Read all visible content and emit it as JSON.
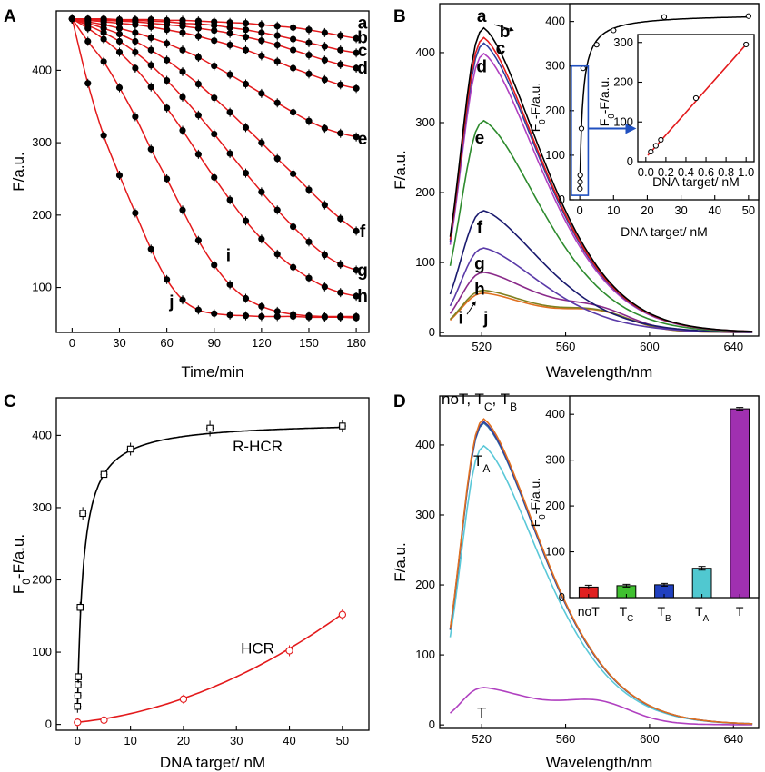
{
  "panels": [
    {
      "id": "A",
      "letter": "A",
      "chart_data": {
        "type": "scatter",
        "xlabel": "Time/min",
        "ylabel": "F/a.u.",
        "xlim": [
          -10,
          188
        ],
        "ylim": [
          38,
          482
        ],
        "xticks": [
          0,
          30,
          60,
          90,
          120,
          150,
          180
        ],
        "yticks": [
          100,
          200,
          300,
          400
        ],
        "line_color": "#e31a1c",
        "series": [
          {
            "name": "a",
            "x": [
              0,
              10,
              20,
              30,
              40,
              50,
              60,
              70,
              80,
              90,
              100,
              110,
              120,
              130,
              140,
              150,
              160,
              170,
              180
            ],
            "y": [
              471,
              471,
              471,
              470,
              470,
              470,
              469,
              469,
              468,
              467,
              466,
              465,
              463,
              461,
              459,
              456,
              452,
              448,
              444
            ]
          },
          {
            "name": "b",
            "x": [
              0,
              10,
              20,
              30,
              40,
              50,
              60,
              70,
              80,
              90,
              100,
              110,
              120,
              130,
              140,
              150,
              160,
              170,
              180
            ],
            "y": [
              471,
              470,
              470,
              469,
              469,
              468,
              467,
              465,
              464,
              462,
              459,
              456,
              452,
              448,
              443,
              438,
              433,
              428,
              424
            ]
          },
          {
            "name": "c",
            "x": [
              0,
              10,
              20,
              30,
              40,
              50,
              60,
              70,
              80,
              90,
              100,
              110,
              120,
              130,
              140,
              150,
              160,
              170,
              180
            ],
            "y": [
              471,
              470,
              469,
              468,
              467,
              465,
              463,
              461,
              458,
              455,
              451,
              446,
              441,
              435,
              428,
              421,
              414,
              408,
              403
            ]
          },
          {
            "name": "d",
            "x": [
              0,
              10,
              20,
              30,
              40,
              50,
              60,
              70,
              80,
              90,
              100,
              110,
              120,
              130,
              140,
              150,
              160,
              170,
              180
            ],
            "y": [
              471,
              469,
              467,
              465,
              463,
              460,
              456,
              452,
              447,
              441,
              435,
              428,
              420,
              412,
              403,
              395,
              387,
              380,
              375
            ]
          },
          {
            "name": "e",
            "x": [
              0,
              10,
              20,
              30,
              40,
              50,
              60,
              70,
              80,
              90,
              100,
              110,
              120,
              130,
              140,
              150,
              160,
              170,
              180
            ],
            "y": [
              471,
              467,
              463,
              458,
              452,
              445,
              437,
              428,
              418,
              406,
              394,
              381,
              368,
              355,
              342,
              330,
              320,
              313,
              308
            ]
          },
          {
            "name": "f",
            "x": [
              0,
              10,
              20,
              30,
              40,
              50,
              60,
              70,
              80,
              90,
              100,
              110,
              120,
              130,
              140,
              150,
              160,
              170,
              180
            ],
            "y": [
              471,
              465,
              458,
              450,
              440,
              428,
              414,
              398,
              381,
              362,
              342,
              321,
              300,
              278,
              257,
              235,
              214,
              195,
              178
            ]
          },
          {
            "name": "g",
            "x": [
              0,
              10,
              20,
              30,
              40,
              50,
              60,
              70,
              80,
              90,
              100,
              110,
              120,
              130,
              140,
              150,
              160,
              170,
              180
            ],
            "y": [
              471,
              462,
              452,
              440,
              425,
              407,
              386,
              363,
              338,
              312,
              285,
              258,
              232,
              207,
              184,
              163,
              145,
              132,
              124
            ]
          },
          {
            "name": "h",
            "x": [
              0,
              10,
              20,
              30,
              40,
              50,
              60,
              70,
              80,
              90,
              100,
              110,
              120,
              130,
              140,
              150,
              160,
              170,
              180
            ],
            "y": [
              471,
              458,
              443,
              425,
              403,
              377,
              348,
              317,
              284,
              252,
              221,
              192,
              167,
              146,
              128,
              113,
              101,
              93,
              88
            ]
          },
          {
            "name": "i",
            "x": [
              0,
              10,
              20,
              30,
              40,
              50,
              60,
              70,
              80,
              90,
              100,
              110,
              120,
              130,
              140,
              150,
              160,
              170,
              180
            ],
            "y": [
              471,
              440,
              412,
              376,
              336,
              291,
              250,
              207,
              165,
              131,
              104,
              85,
              74,
              67,
              63,
              61,
              60,
              60,
              60
            ]
          },
          {
            "name": "j",
            "x": [
              0,
              10,
              20,
              30,
              40,
              50,
              60,
              70,
              80,
              90,
              100,
              110,
              120,
              130,
              140,
              150,
              160,
              170,
              180
            ],
            "y": [
              471,
              382,
              310,
              255,
              203,
              153,
              111,
              83,
              69,
              64,
              62,
              61,
              60,
              60,
              60,
              59,
              59,
              59,
              58
            ]
          }
        ],
        "curve_labels": [
          {
            "text": "a",
            "x": 184,
            "y": 465
          },
          {
            "text": "b",
            "x": 184,
            "y": 445
          },
          {
            "text": "c",
            "x": 184,
            "y": 427
          },
          {
            "text": "d",
            "x": 184,
            "y": 403
          },
          {
            "text": "e",
            "x": 184,
            "y": 305
          },
          {
            "text": "f",
            "x": 184,
            "y": 177
          },
          {
            "text": "g",
            "x": 184,
            "y": 123
          },
          {
            "text": "h",
            "x": 184,
            "y": 88
          },
          {
            "text": "i",
            "x": 99,
            "y": 144
          },
          {
            "text": "j",
            "x": 63,
            "y": 80
          }
        ]
      }
    },
    {
      "id": "B",
      "letter": "B",
      "chart_data": {
        "type": "line",
        "xlabel": "Wavelength/nm",
        "ylabel": "F/a.u.",
        "xlim": [
          500,
          652
        ],
        "ylim": [
          -5,
          470
        ],
        "xticks": [
          520,
          560,
          600,
          640
        ],
        "yticks": [
          0,
          100,
          200,
          300,
          400
        ],
        "series": [
          {
            "name": "a",
            "color": "#000000",
            "peak": 440,
            "shoulder": 20
          },
          {
            "name": "b",
            "color": "#e31a1c",
            "peak": 426,
            "shoulder": 19
          },
          {
            "name": "c",
            "color": "#3040a0",
            "peak": 418,
            "shoulder": 19
          },
          {
            "name": "d",
            "color": "#b040c0",
            "peak": 403,
            "shoulder": 19
          },
          {
            "name": "e",
            "color": "#2e8b2e",
            "peak": 306,
            "shoulder": 20
          },
          {
            "name": "f",
            "color": "#1a1a6e",
            "peak": 176,
            "shoulder": 20
          },
          {
            "name": "g",
            "color": "#5a3aa8",
            "peak": 122,
            "shoulder": 20
          },
          {
            "name": "h",
            "color": "#8a2a8a",
            "peak": 87,
            "shoulder": 20
          },
          {
            "name": "i",
            "color": "#808020",
            "peak": 61,
            "shoulder": 20
          },
          {
            "name": "j",
            "color": "#e07020",
            "peak": 57,
            "shoulder": 20
          }
        ],
        "curve_labels": [
          {
            "text": "a",
            "x": 520,
            "y": 452
          },
          {
            "text": "b",
            "x": 531,
            "y": 430
          },
          {
            "text": "c",
            "x": 529,
            "y": 406
          },
          {
            "text": "d",
            "x": 520,
            "y": 380
          },
          {
            "text": "e",
            "x": 519,
            "y": 278
          },
          {
            "text": "f",
            "x": 519,
            "y": 150
          },
          {
            "text": "g",
            "x": 519,
            "y": 98
          },
          {
            "text": "h",
            "x": 519,
            "y": 62
          },
          {
            "text": "i",
            "x": 510,
            "y": 20
          },
          {
            "text": "j",
            "x": 522,
            "y": 20
          }
        ],
        "inset": {
          "xlabel": "DNA target/ nM",
          "ylabel": "F",
          "ylabel_sub": "0",
          "ylabel_rest": "-F/a.u.",
          "xlim": [
            -3,
            53
          ],
          "ylim": [
            0,
            440
          ],
          "xticks": [
            0,
            10,
            20,
            30,
            40,
            50
          ],
          "yticks": [
            0,
            100,
            200,
            300,
            400
          ],
          "x": [
            0.05,
            0.1,
            0.15,
            0.5,
            1,
            5,
            10,
            25,
            50
          ],
          "y": [
            25,
            40,
            55,
            160,
            295,
            348,
            380,
            410,
            412
          ],
          "err": [
            5,
            5,
            6,
            8,
            6,
            5,
            6,
            6,
            5
          ],
          "box_color": "#2050c0",
          "inner": {
            "xlabel": "DNA target/ nM",
            "ylabel": "F",
            "ylabel_sub": "0",
            "ylabel_rest": "-F/a.u.",
            "xlim": [
              -0.08,
              1.08
            ],
            "ylim": [
              0,
              320
            ],
            "xticks": [
              0.0,
              0.2,
              0.4,
              0.6,
              0.8,
              1.0
            ],
            "xtick_labels": [
              "0.0",
              "0.2",
              "0.4",
              "0.6",
              "0.8",
              "1.0"
            ],
            "yticks": [
              0,
              100,
              200,
              300
            ],
            "x": [
              0.05,
              0.1,
              0.15,
              0.5,
              1
            ],
            "y": [
              25,
              40,
              55,
              160,
              295
            ],
            "fit_color": "#e31a1c"
          }
        }
      }
    },
    {
      "id": "C",
      "letter": "C",
      "chart_data": {
        "type": "scatter",
        "xlabel": "DNA target/ nM",
        "ylabel": "F",
        "ylabel_sub": "0",
        "ylabel_rest": "-F/a.u.",
        "xlim": [
          -4,
          55
        ],
        "ylim": [
          -8,
          452
        ],
        "xticks": [
          0,
          10,
          20,
          30,
          40,
          50
        ],
        "yticks": [
          0,
          100,
          200,
          300,
          400
        ],
        "series": [
          {
            "name": "R-HCR",
            "color": "#000000",
            "x": [
              0,
              0.05,
              0.1,
              0.15,
              0.5,
              1,
              5,
              10,
              25,
              50
            ],
            "y": [
              25,
              40,
              55,
              66,
              162,
              292,
              346,
              381,
              410,
              413
            ],
            "err": [
              5,
              5,
              5,
              5,
              4,
              5,
              5,
              5,
              7,
              5
            ]
          },
          {
            "name": "HCR",
            "color": "#e31a1c",
            "x": [
              0,
              5,
              20,
              40,
              50
            ],
            "y": [
              3,
              6,
              35,
              102,
              152
            ],
            "err": [
              3,
              3,
              3,
              4,
              4
            ]
          }
        ],
        "annotations": [
          {
            "text": "R-HCR",
            "x": 34,
            "y": 378
          },
          {
            "text": "HCR",
            "x": 34,
            "y": 98
          }
        ]
      }
    },
    {
      "id": "D",
      "letter": "D",
      "chart_data": {
        "type": "line",
        "xlabel": "Wavelength/nm",
        "ylabel": "F/a.u.",
        "xlim": [
          500,
          652
        ],
        "ylim": [
          -5,
          470
        ],
        "xticks": [
          520,
          560,
          600,
          640
        ],
        "yticks": [
          0,
          100,
          200,
          300,
          400
        ],
        "series": [
          {
            "name": "noT",
            "color": "#e07020",
            "peak": 442,
            "shoulder": 20
          },
          {
            "name": "TC",
            "color": "#3a3a9a",
            "peak": 438,
            "shoulder": 20
          },
          {
            "name": "TB",
            "color": "#2a7aaa",
            "peak": 436,
            "shoulder": 20
          },
          {
            "name": "TA",
            "color": "#5ac8d8",
            "peak": 403,
            "shoulder": 20
          },
          {
            "name": "T",
            "color": "#b040c0",
            "peak": 54,
            "shoulder": 24
          }
        ],
        "labels": {
          "group_main": "noT, T",
          "group_c": "C",
          "group_sep": ", T",
          "group_b": "B",
          "ta_main": "T",
          "ta_sub": "A",
          "t_label": "T"
        },
        "inset": {
          "type": "bar",
          "ylabel": "F",
          "ylabel_sub": "0",
          "ylabel_rest": "-F/a.u.",
          "ylim": [
            0,
            440
          ],
          "yticks": [
            0,
            100,
            200,
            300,
            400
          ],
          "categories": [
            {
              "main": "noT",
              "sub": ""
            },
            {
              "main": "T",
              "sub": "C"
            },
            {
              "main": "T",
              "sub": "B"
            },
            {
              "main": "T",
              "sub": "A"
            },
            {
              "main": "T",
              "sub": ""
            }
          ],
          "values": [
            23,
            26,
            28,
            64,
            412
          ],
          "err": [
            4,
            3,
            3,
            4,
            3
          ],
          "colors": [
            "#e02020",
            "#40c030",
            "#2040c0",
            "#50c8d0",
            "#a030b0"
          ]
        }
      }
    }
  ]
}
